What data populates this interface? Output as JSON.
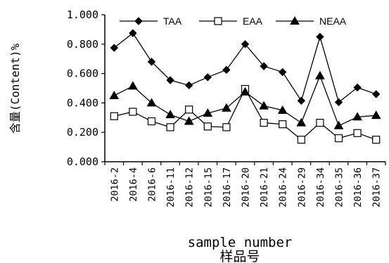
{
  "chart_data": {
    "type": "line",
    "xlabel": "sample number",
    "xlabel_cn": "样品号",
    "ylabel": "含量(Content)%",
    "ylim": [
      0,
      1.0
    ],
    "yticks": [
      "0.000",
      "0.200",
      "0.400",
      "0.600",
      "0.800",
      "1.000"
    ],
    "grid": false,
    "legend_position": "top",
    "categories": [
      "2016-2",
      "2016-4",
      "2016-6",
      "2016-11",
      "2016-12",
      "2016-15",
      "2016-17",
      "2016-20",
      "2016-21",
      "2016-24",
      "2016-29",
      "2016-34",
      "2016-35",
      "2016-36",
      "2016-37"
    ],
    "series": [
      {
        "name": "TAA",
        "marker": "diamond-filled",
        "values": [
          0.775,
          0.875,
          0.68,
          0.555,
          0.52,
          0.575,
          0.625,
          0.8,
          0.65,
          0.61,
          0.415,
          0.85,
          0.405,
          0.505,
          0.46
        ]
      },
      {
        "name": "EAA",
        "marker": "square-open",
        "values": [
          0.31,
          0.34,
          0.275,
          0.235,
          0.355,
          0.24,
          0.235,
          0.495,
          0.265,
          0.255,
          0.15,
          0.265,
          0.16,
          0.195,
          0.15
        ]
      },
      {
        "name": "NEAA",
        "marker": "triangle-filled",
        "values": [
          0.45,
          0.515,
          0.4,
          0.32,
          0.275,
          0.33,
          0.365,
          0.475,
          0.38,
          0.35,
          0.265,
          0.585,
          0.245,
          0.305,
          0.315
        ]
      }
    ],
    "colors": {
      "line": "#000000",
      "background": "#ffffff"
    }
  }
}
